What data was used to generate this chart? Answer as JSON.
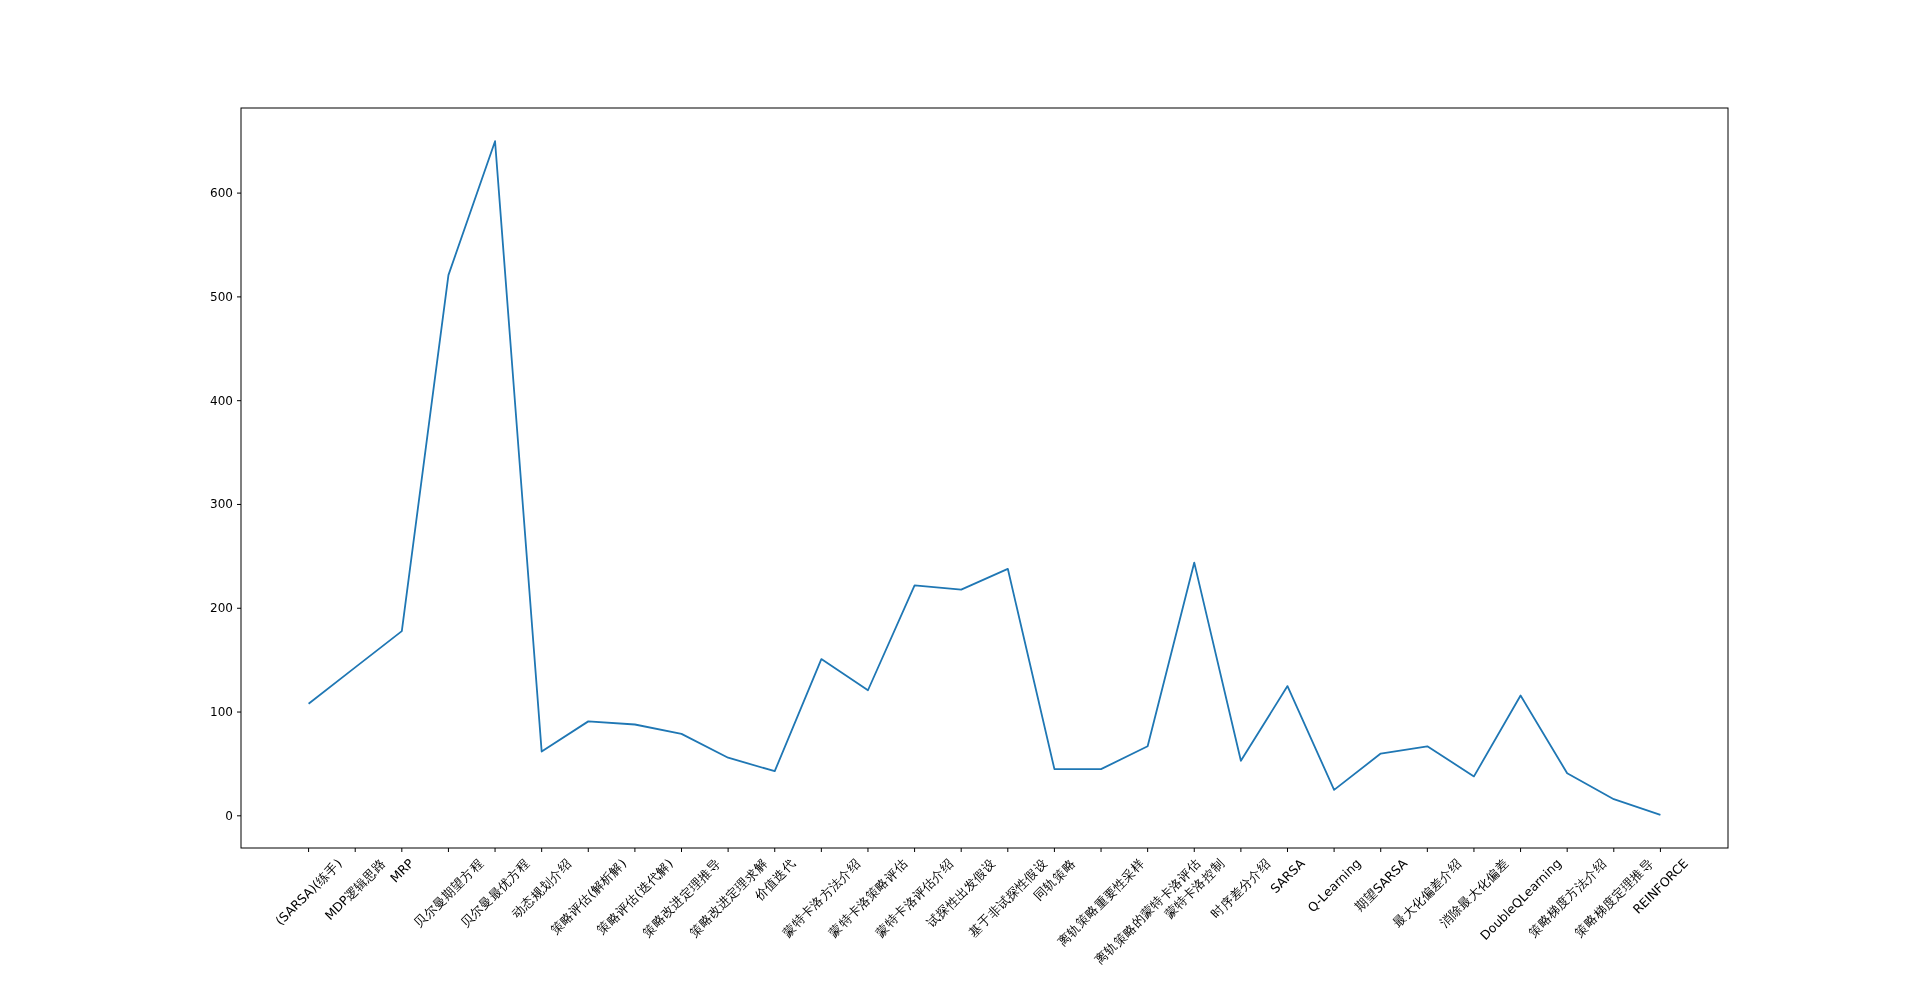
{
  "chart_data": {
    "type": "line",
    "categories": [
      "(SARSA)(练手)",
      "MDP逻辑思路",
      "MRP",
      "贝尔曼期望方程",
      "贝尔曼最优方程",
      "动态规划介绍",
      "策略评估(解析解)",
      "策略评估(迭代解)",
      "策略改进定理推导",
      "策略改进定理求解",
      "价值迭代",
      "蒙特卡洛方法介绍",
      "蒙特卡洛策略评估",
      "蒙特卡洛评估介绍",
      "试探性出发假设",
      "基于非试探性假设",
      "同轨策略",
      "离轨策略重要性采样",
      "离轨策略的蒙特卡洛评估",
      "蒙特卡洛控制",
      "时序差分介绍",
      "SARSA",
      "Q-Learning",
      "期望SARSA",
      "最大化偏差介绍",
      "消除最大化偏差",
      "DoubleQLearning",
      "策略梯度方法介绍",
      "策略梯度定理推导",
      "REINFORCE"
    ],
    "values": [
      108,
      143,
      178,
      521,
      650,
      62,
      91,
      88,
      79,
      56,
      43,
      151,
      121,
      222,
      218,
      238,
      45,
      45,
      67,
      244,
      53,
      125,
      25,
      60,
      67,
      38,
      116,
      41,
      16,
      1
    ],
    "color": "#1f77b4",
    "ylim": [
      -31,
      682
    ],
    "yticks": [
      0,
      100,
      200,
      300,
      400,
      500,
      600
    ]
  }
}
